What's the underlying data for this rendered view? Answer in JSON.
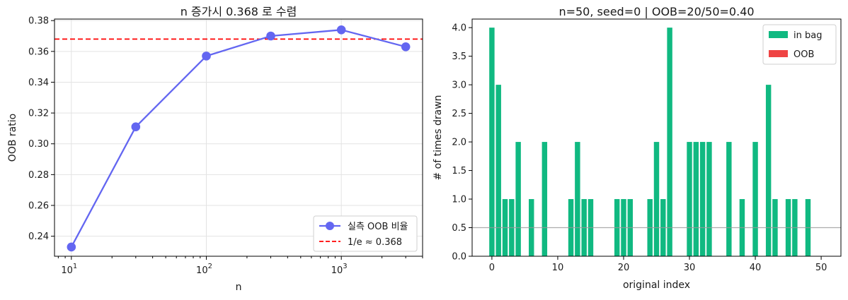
{
  "chart_data": [
    {
      "type": "line",
      "title": "n 증가시 0.368 로 수렴",
      "xlabel": "n",
      "ylabel": "OOB ratio",
      "xscale": "log",
      "xlim": [
        7.5,
        4000
      ],
      "ylim": [
        0.227,
        0.381
      ],
      "x_tick_labels": [
        {
          "base": "10",
          "exp": "1"
        },
        {
          "base": "10",
          "exp": "2"
        },
        {
          "base": "10",
          "exp": "3"
        }
      ],
      "y_ticks": [
        "0.24",
        "0.26",
        "0.28",
        "0.30",
        "0.32",
        "0.34",
        "0.36",
        "0.38"
      ],
      "series": [
        {
          "name": "실측 OOB 비율",
          "color": "#6366f1",
          "x": [
            10,
            30,
            100,
            300,
            1000,
            3000
          ],
          "y": [
            0.233,
            0.311,
            0.357,
            0.37,
            0.374,
            0.363
          ]
        }
      ],
      "reference_line": {
        "name": "1/e ≈ 0.368",
        "y": 0.368,
        "color": "#ff0000",
        "style": "dashed"
      },
      "grid": true,
      "legend": "lower-right"
    },
    {
      "type": "bar",
      "title": "n=50, seed=0  |  OOB=20/50=0.40",
      "xlabel": "original index",
      "ylabel": "# of times drawn",
      "xlim": [
        -3,
        53
      ],
      "ylim": [
        0,
        4.15
      ],
      "x_ticks": [
        "0",
        "10",
        "20",
        "30",
        "40",
        "50"
      ],
      "y_ticks": [
        "0.0",
        "0.5",
        "1.0",
        "1.5",
        "2.0",
        "2.5",
        "3.0",
        "3.5",
        "4.0"
      ],
      "series": [
        {
          "name": "in bag",
          "color": "#10b981"
        },
        {
          "name": "OOB",
          "color": "#ef4444"
        }
      ],
      "x": [
        0,
        1,
        2,
        3,
        4,
        6,
        8,
        12,
        13,
        14,
        15,
        19,
        20,
        21,
        24,
        25,
        26,
        27,
        30,
        31,
        32,
        33,
        36,
        38,
        40,
        42,
        43,
        45,
        46,
        48
      ],
      "values": [
        4,
        3,
        1,
        1,
        2,
        1,
        2,
        1,
        2,
        1,
        1,
        1,
        1,
        1,
        1,
        2,
        1,
        4,
        2,
        2,
        2,
        2,
        2,
        1,
        2,
        3,
        1,
        1,
        1,
        1
      ],
      "reference_line": {
        "y": 0.5,
        "color": "#999999"
      },
      "legend": "top-right"
    }
  ]
}
